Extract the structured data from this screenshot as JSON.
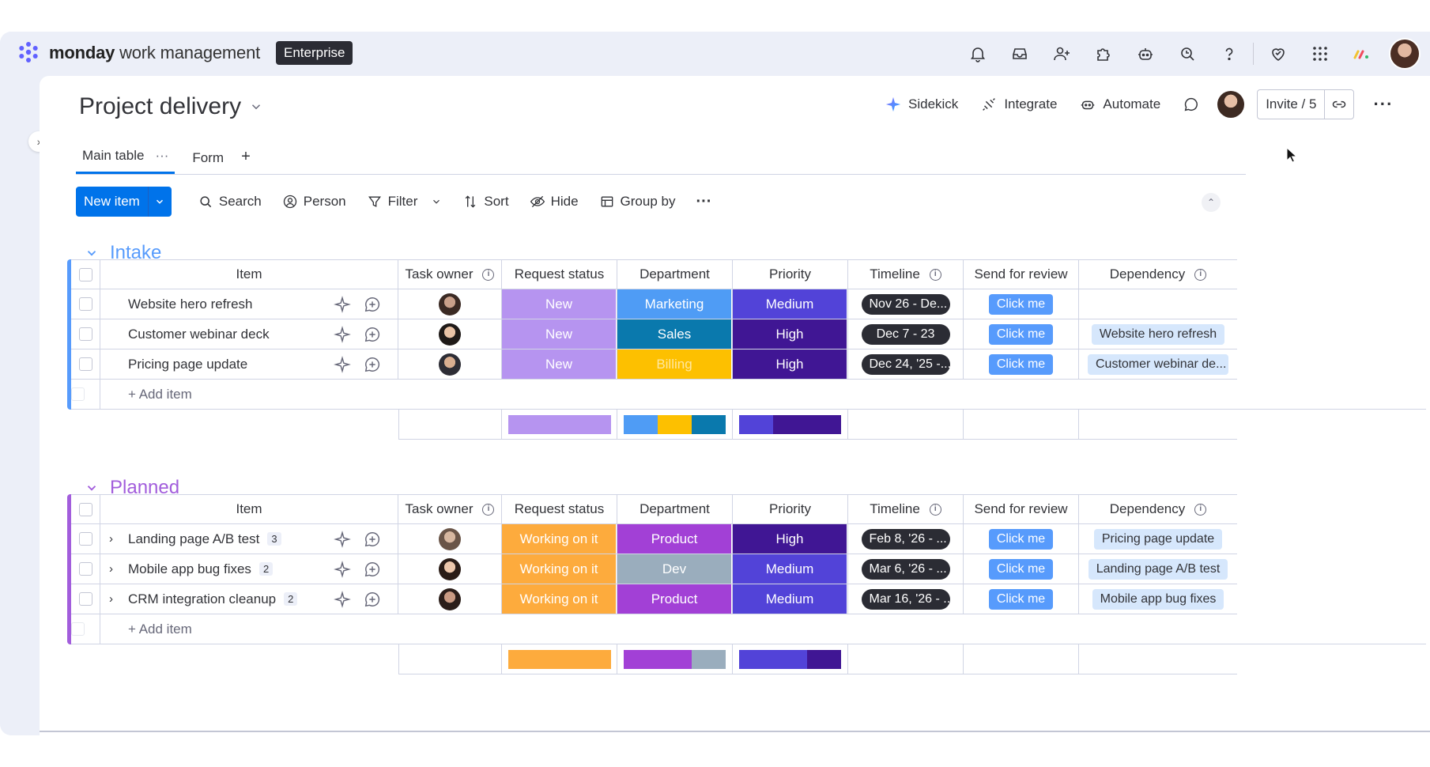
{
  "app": {
    "logo_bold": "monday",
    "logo_rest": " work management",
    "plan": "Enterprise",
    "top_icons": [
      "bell-icon",
      "inbox-icon",
      "invite-members-icon",
      "apps-icon",
      "ai-robot-icon",
      "search-icon",
      "help-icon",
      "heart-icon",
      "grid-icon"
    ]
  },
  "board": {
    "title": "Project delivery",
    "actions": {
      "sidekick": "Sidekick",
      "integrate": "Integrate",
      "automate": "Automate",
      "invite": "Invite / 5"
    },
    "views": [
      {
        "label": "Main table",
        "active": true
      },
      {
        "label": "Form",
        "active": false
      }
    ],
    "add_view": "+",
    "toolbar": {
      "new_item": "New item",
      "search": "Search",
      "person": "Person",
      "filter": "Filter",
      "sort": "Sort",
      "hide": "Hide",
      "group_by": "Group by"
    }
  },
  "columns": {
    "item": "Item",
    "task_owner": "Task owner",
    "request_status": "Request status",
    "department": "Department",
    "priority": "Priority",
    "timeline": "Timeline",
    "send_for_review": "Send for review",
    "dependency": "Dependency"
  },
  "add_item": "+ Add item",
  "groups": [
    {
      "name": "Intake",
      "color": "#579bfc",
      "rows": [
        {
          "item": "Website hero refresh",
          "subitems": "",
          "owner_skin": "#c9a08a",
          "status": "New",
          "status_color": "#b694f0",
          "department": "Marketing",
          "dept_color": "#4f9cf5",
          "dept_text_color": "#ffffff",
          "priority": "Medium",
          "priority_color": "#5243d8",
          "timeline": "Nov 26 - De...",
          "review": "Click me",
          "dependency": ""
        },
        {
          "item": "Customer webinar deck",
          "subitems": "",
          "owner_skin": "#e9c3a6",
          "status": "New",
          "status_color": "#b694f0",
          "department": "Sales",
          "dept_color": "#0a79ad",
          "dept_text_color": "#ffffff",
          "priority": "High",
          "priority_color": "#401694",
          "timeline": "Dec 7 - 23",
          "review": "Click me",
          "dependency": "Website hero refresh"
        },
        {
          "item": "Pricing page update",
          "subitems": "",
          "owner_skin": "#d8ae90",
          "status": "New",
          "status_color": "#b694f0",
          "department": "Billing",
          "dept_color": "#fdc000",
          "dept_text_color": "#ffe7a0",
          "priority": "High",
          "priority_color": "#401694",
          "timeline": "Dec 24, '25 -...",
          "review": "Click me",
          "dependency": "Customer webinar de..."
        }
      ],
      "summary": {
        "status": [
          {
            "color": "#b694f0",
            "share": 1
          }
        ],
        "department": [
          {
            "color": "#4f9cf5",
            "share": 0.333
          },
          {
            "color": "#fdc000",
            "share": 0.333
          },
          {
            "color": "#0a79ad",
            "share": 0.334
          }
        ],
        "priority": [
          {
            "color": "#5243d8",
            "share": 0.333
          },
          {
            "color": "#401694",
            "share": 0.667
          }
        ]
      }
    },
    {
      "name": "Planned",
      "color": "#a25ddc",
      "rows": [
        {
          "item": "Landing page A/B test",
          "subitems": "3",
          "owner_skin": "#d7b7a0",
          "status": "Working on it",
          "status_color": "#fdab3d",
          "department": "Product",
          "dept_color": "#a240d6",
          "dept_text_color": "#ffffff",
          "priority": "High",
          "priority_color": "#401694",
          "timeline": "Feb 8, '26 - ...",
          "review": "Click me",
          "dependency": "Pricing page update"
        },
        {
          "item": "Mobile app bug fixes",
          "subitems": "2",
          "owner_skin": "#ecc6aa",
          "status": "Working on it",
          "status_color": "#fdab3d",
          "department": "Dev",
          "dept_color": "#9aadbd",
          "dept_text_color": "#ffffff",
          "priority": "Medium",
          "priority_color": "#5243d8",
          "timeline": "Mar 6, '26 - ...",
          "review": "Click me",
          "dependency": "Landing page A/B test"
        },
        {
          "item": "CRM integration cleanup",
          "subitems": "2",
          "owner_skin": "#c99a83",
          "status": "Working on it",
          "status_color": "#fdab3d",
          "department": "Product",
          "dept_color": "#a240d6",
          "dept_text_color": "#ffffff",
          "priority": "Medium",
          "priority_color": "#5243d8",
          "timeline": "Mar 16, '26 - ...",
          "review": "Click me",
          "dependency": "Mobile app bug fixes"
        }
      ],
      "summary": {
        "status": [
          {
            "color": "#fdab3d",
            "share": 1
          }
        ],
        "department": [
          {
            "color": "#a240d6",
            "share": 0.667
          },
          {
            "color": "#9aadbd",
            "share": 0.333
          }
        ],
        "priority": [
          {
            "color": "#5243d8",
            "share": 0.667
          },
          {
            "color": "#401694",
            "share": 0.333
          }
        ]
      }
    }
  ]
}
